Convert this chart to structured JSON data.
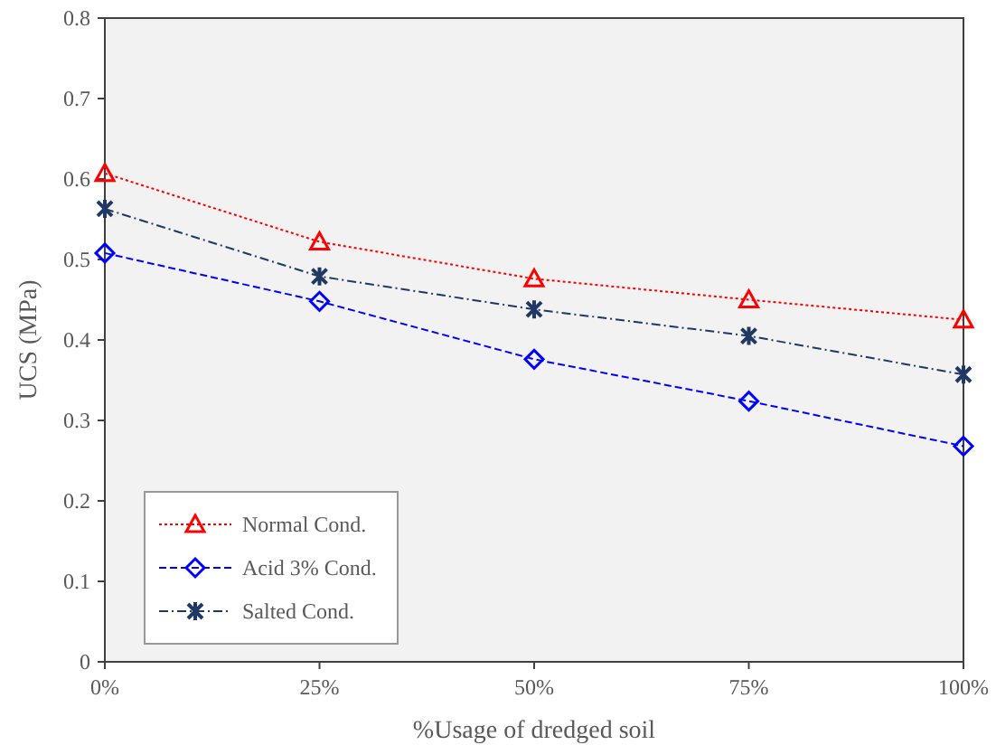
{
  "chart_data": {
    "type": "line",
    "xlabel": "%Usage of dredged soil",
    "ylabel": "UCS (MPa)",
    "x": [
      0,
      25,
      50,
      75,
      100
    ],
    "xlim": [
      0,
      100
    ],
    "xticks": [
      {
        "value": 0,
        "label": "0%"
      },
      {
        "value": 25,
        "label": "25%"
      },
      {
        "value": 50,
        "label": "50%"
      },
      {
        "value": 75,
        "label": "75%"
      },
      {
        "value": 100,
        "label": "100%"
      }
    ],
    "ylim": [
      0,
      0.8
    ],
    "yticks": [
      0,
      0.1,
      0.2,
      0.3,
      0.4,
      0.5,
      0.6,
      0.7,
      0.8
    ],
    "grid": false,
    "legend": "bottom left",
    "series": [
      {
        "name": "Normal Cond.",
        "color": "#ff0000",
        "marker": "triangle",
        "line_style": "dotted",
        "values": [
          0.607,
          0.522,
          0.476,
          0.45,
          0.425
        ]
      },
      {
        "name": "Acid 3% Cond.",
        "color": "#0000ff",
        "marker": "diamond",
        "line_style": "dashed",
        "values": [
          0.508,
          0.448,
          0.376,
          0.324,
          0.268
        ]
      },
      {
        "name": "Salted Cond.",
        "color": "#1f3864",
        "marker": "cross",
        "line_style": "dashdot",
        "values": [
          0.563,
          0.479,
          0.438,
          0.405,
          0.357
        ]
      }
    ]
  }
}
